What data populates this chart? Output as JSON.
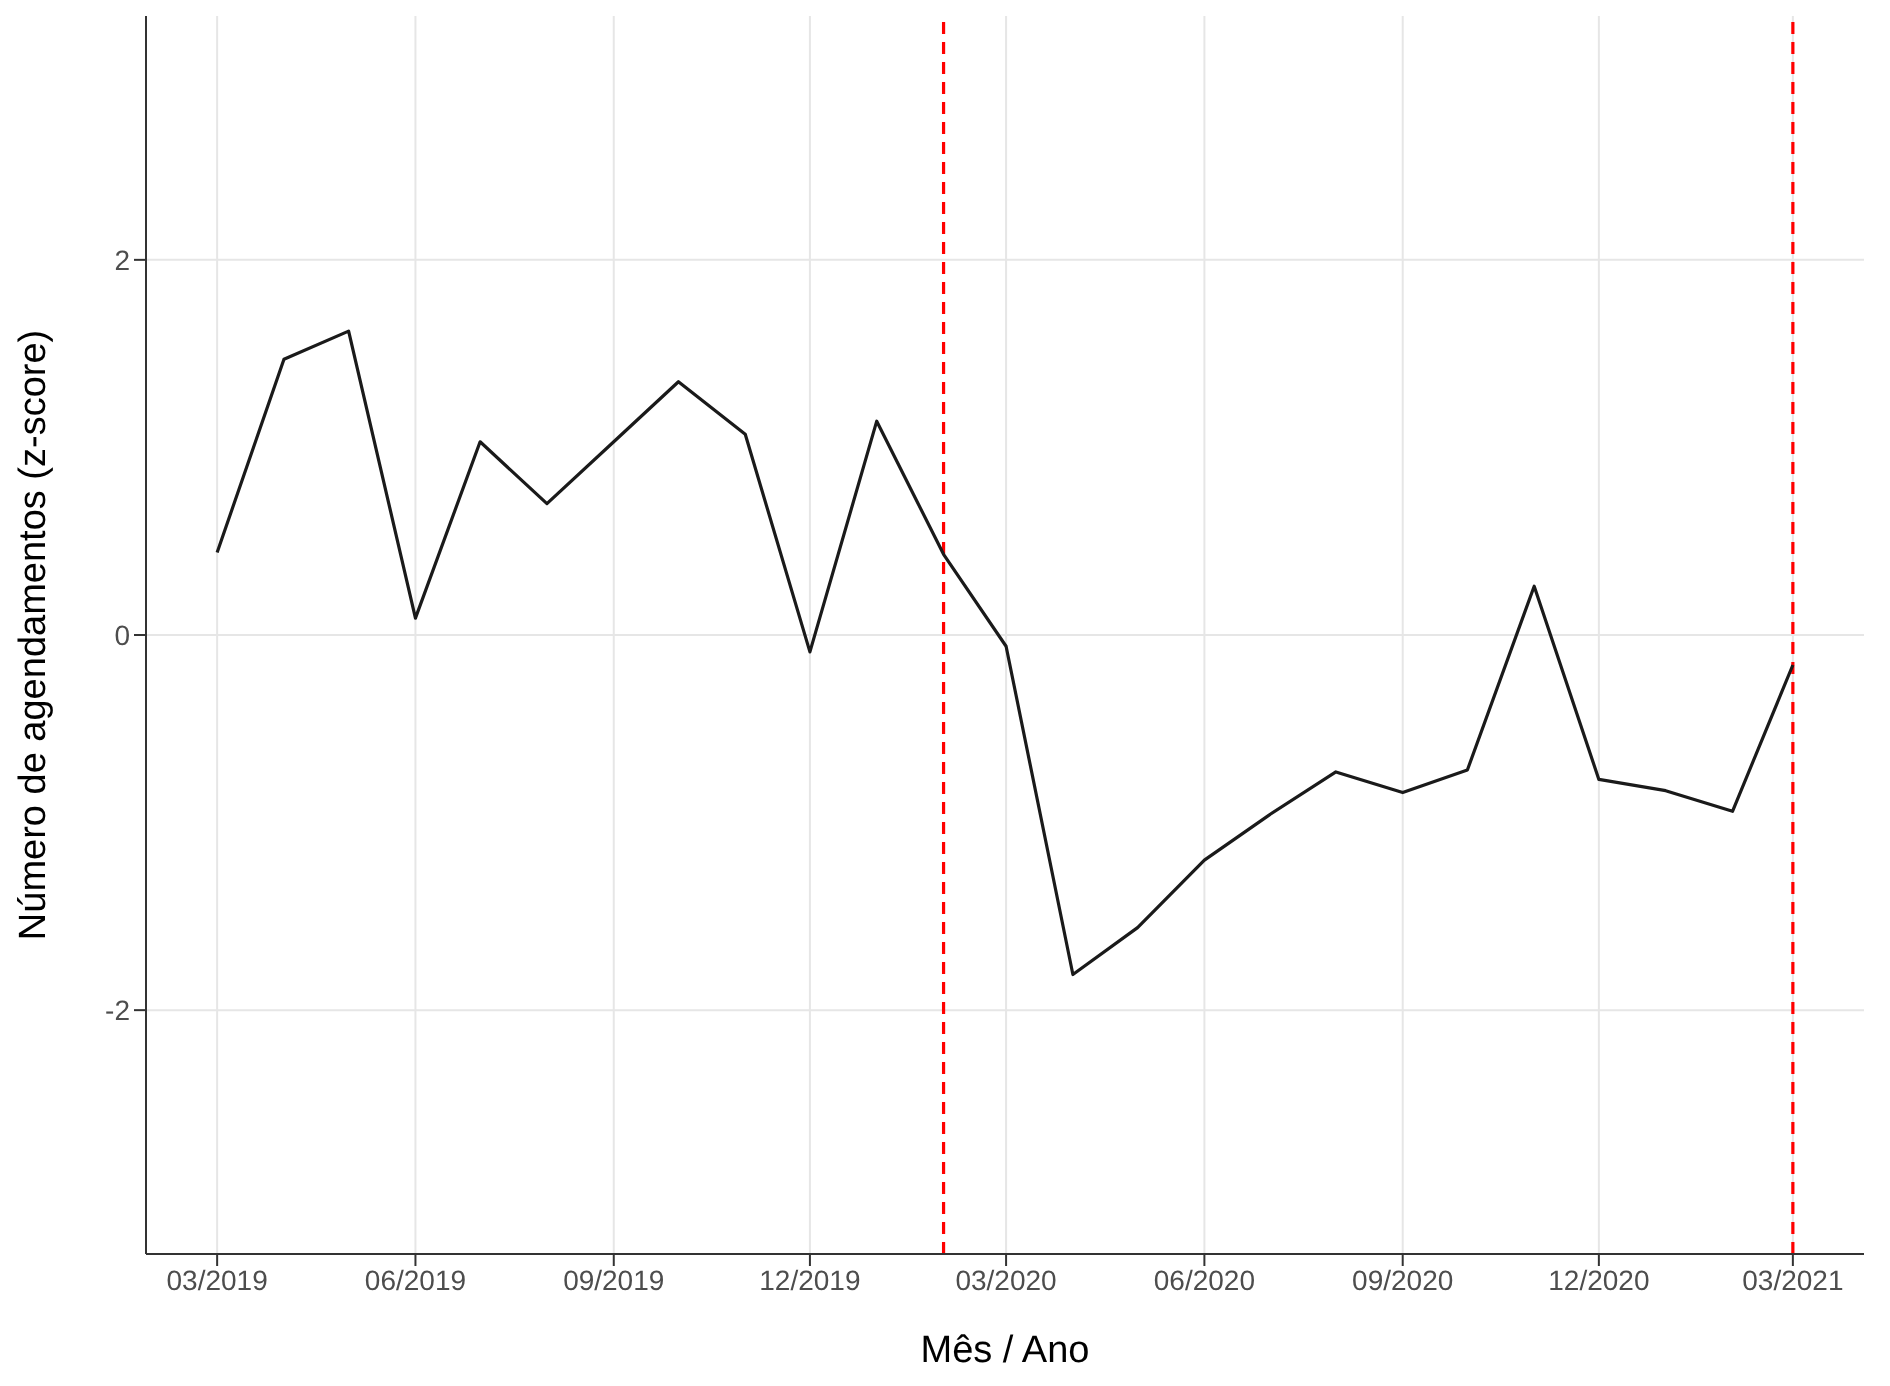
{
  "chart_data": {
    "type": "line",
    "xlabel": "Mês / Ano",
    "ylabel": "Número de agendamentos (z-score)",
    "x": [
      "2019-03",
      "2019-04",
      "2019-05",
      "2019-06",
      "2019-07",
      "2019-08",
      "2019-09",
      "2019-10",
      "2019-11",
      "2019-12",
      "2020-01",
      "2020-02",
      "2020-03",
      "2020-04",
      "2020-05",
      "2020-06",
      "2020-07",
      "2020-08",
      "2020-09",
      "2020-10",
      "2020-11",
      "2020-12",
      "2021-01",
      "2021-02",
      "2021-03"
    ],
    "series": [
      {
        "color": "#1a1a1a",
        "values": [
          0.44,
          1.47,
          1.62,
          0.09,
          1.03,
          0.7,
          1.03,
          1.35,
          1.07,
          -0.09,
          1.14,
          0.43,
          -0.06,
          -1.81,
          -1.56,
          -1.2,
          -0.96,
          -0.73,
          -0.84,
          -0.72,
          0.26,
          -0.77,
          -0.83,
          -0.94,
          -0.16
        ]
      }
    ],
    "xlim": [
      "2019-01-27",
      "2021-04-03"
    ],
    "xticks": [
      {
        "value": "2019-03",
        "label": "03/2019"
      },
      {
        "value": "2019-06",
        "label": "06/2019"
      },
      {
        "value": "2019-09",
        "label": "09/2019"
      },
      {
        "value": "2019-12",
        "label": "12/2019"
      },
      {
        "value": "2020-03",
        "label": "03/2020"
      },
      {
        "value": "2020-06",
        "label": "06/2020"
      },
      {
        "value": "2020-09",
        "label": "09/2020"
      },
      {
        "value": "2020-12",
        "label": "12/2020"
      },
      {
        "value": "2021-03",
        "label": "03/2021"
      }
    ],
    "ylim": [
      -3.3,
      3.3
    ],
    "yticks": [
      -2,
      0,
      2
    ],
    "ref_lines": [
      {
        "axis": "x",
        "value": "2020-02",
        "color": "#ff0000",
        "line_style": "dashed"
      },
      {
        "axis": "x",
        "value": "2021-03",
        "color": "#ff0000",
        "line_style": "dashed"
      }
    ],
    "grid": true,
    "marker": "none",
    "line_style": "solid"
  }
}
